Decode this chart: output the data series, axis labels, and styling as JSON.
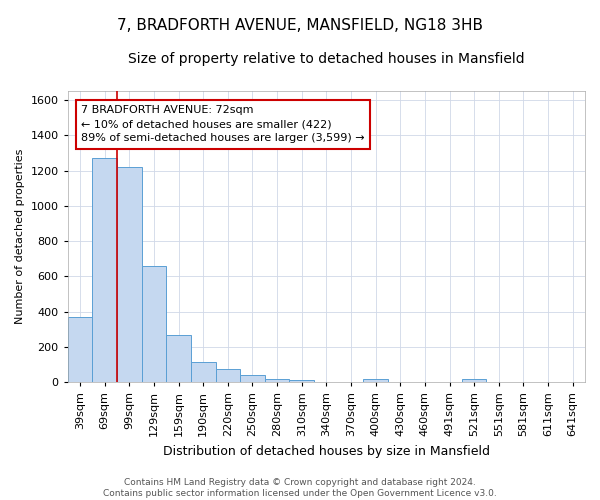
{
  "title": "7, BRADFORTH AVENUE, MANSFIELD, NG18 3HB",
  "subtitle": "Size of property relative to detached houses in Mansfield",
  "xlabel": "Distribution of detached houses by size in Mansfield",
  "ylabel": "Number of detached properties",
  "categories": [
    "39sqm",
    "69sqm",
    "99sqm",
    "129sqm",
    "159sqm",
    "190sqm",
    "220sqm",
    "250sqm",
    "280sqm",
    "310sqm",
    "340sqm",
    "370sqm",
    "400sqm",
    "430sqm",
    "460sqm",
    "491sqm",
    "521sqm",
    "551sqm",
    "581sqm",
    "611sqm",
    "641sqm"
  ],
  "values": [
    370,
    1270,
    1220,
    660,
    270,
    115,
    75,
    40,
    15,
    10,
    0,
    0,
    20,
    0,
    0,
    0,
    20,
    0,
    0,
    0,
    0
  ],
  "bar_color": "#c5d8f0",
  "bar_edge_color": "#5a9fd4",
  "ylim": [
    0,
    1650
  ],
  "yticks": [
    0,
    200,
    400,
    600,
    800,
    1000,
    1200,
    1400,
    1600
  ],
  "annotation_line1": "7 BRADFORTH AVENUE: 72sqm",
  "annotation_line2": "← 10% of detached houses are smaller (422)",
  "annotation_line3": "89% of semi-detached houses are larger (3,599) →",
  "annotation_box_color": "#ffffff",
  "annotation_box_edge_color": "#cc0000",
  "vline_color": "#cc0000",
  "grid_color": "#d0d8e8",
  "footer_text": "Contains HM Land Registry data © Crown copyright and database right 2024.\nContains public sector information licensed under the Open Government Licence v3.0.",
  "plot_bg_color": "#ffffff",
  "fig_bg_color": "#ffffff",
  "title_fontsize": 11,
  "subtitle_fontsize": 10,
  "xlabel_fontsize": 9,
  "ylabel_fontsize": 8,
  "tick_fontsize": 8,
  "footer_fontsize": 6.5,
  "ann_fontsize": 8
}
